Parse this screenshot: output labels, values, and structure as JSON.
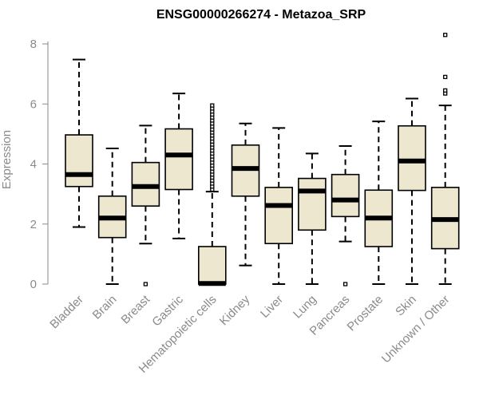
{
  "chart_data": {
    "type": "boxplot",
    "title": "ENSG00000266274 - Metazoa_SRP",
    "xlabel": "",
    "ylabel": "Expression",
    "ylim": [
      0,
      8.4
    ],
    "yticks": [
      0,
      2,
      4,
      6,
      8
    ],
    "box_color": "#ede7cf",
    "categories": [
      "Bladder",
      "Brain",
      "Breast",
      "Gastric",
      "Hematopoietic cells",
      "Kidney",
      "Liver",
      "Lung",
      "Pancreas",
      "Prostate",
      "Skin",
      "Unknown / Other"
    ],
    "series": [
      {
        "name": "Bladder",
        "min": 1.9,
        "q1": 3.25,
        "median": 3.65,
        "q3": 4.97,
        "max": 7.48,
        "outliers": []
      },
      {
        "name": "Brain",
        "min": 0.0,
        "q1": 1.55,
        "median": 2.2,
        "q3": 2.93,
        "max": 4.52,
        "outliers": []
      },
      {
        "name": "Breast",
        "min": 1.35,
        "q1": 2.6,
        "median": 3.25,
        "q3": 4.05,
        "max": 5.28,
        "outliers": [
          0.0
        ]
      },
      {
        "name": "Gastric",
        "min": 1.52,
        "q1": 3.15,
        "median": 4.3,
        "q3": 5.17,
        "max": 6.35,
        "outliers": []
      },
      {
        "name": "Hematopoietic cells",
        "min": 0.0,
        "q1": 0.0,
        "median": 0.02,
        "q3": 1.25,
        "max": 3.08,
        "outliers": [
          3.15,
          3.25,
          3.35,
          3.45,
          3.55,
          3.65,
          3.75,
          3.85,
          3.95,
          4.05,
          4.15,
          4.25,
          4.35,
          4.45,
          4.55,
          4.65,
          4.75,
          4.85,
          4.95,
          5.05,
          5.15,
          5.25,
          5.35,
          5.45,
          5.55,
          5.65,
          5.75,
          5.85,
          5.95
        ]
      },
      {
        "name": "Kidney",
        "min": 0.62,
        "q1": 2.93,
        "median": 3.85,
        "q3": 4.63,
        "max": 5.35,
        "outliers": []
      },
      {
        "name": "Liver",
        "min": 0.0,
        "q1": 1.35,
        "median": 2.62,
        "q3": 3.22,
        "max": 5.2,
        "outliers": []
      },
      {
        "name": "Lung",
        "min": 0.0,
        "q1": 1.8,
        "median": 3.1,
        "q3": 3.52,
        "max": 4.35,
        "outliers": []
      },
      {
        "name": "Pancreas",
        "min": 1.42,
        "q1": 2.25,
        "median": 2.8,
        "q3": 3.65,
        "max": 4.6,
        "outliers": [
          0.0
        ]
      },
      {
        "name": "Prostate",
        "min": 0.0,
        "q1": 1.25,
        "median": 2.2,
        "q3": 3.13,
        "max": 5.42,
        "outliers": []
      },
      {
        "name": "Skin",
        "min": 0.0,
        "q1": 3.12,
        "median": 4.1,
        "q3": 5.27,
        "max": 6.18,
        "outliers": []
      },
      {
        "name": "Unknown / Other",
        "min": 0.0,
        "q1": 1.18,
        "median": 2.15,
        "q3": 3.22,
        "max": 5.95,
        "outliers": [
          6.35,
          6.45,
          6.9,
          8.3
        ]
      }
    ]
  }
}
